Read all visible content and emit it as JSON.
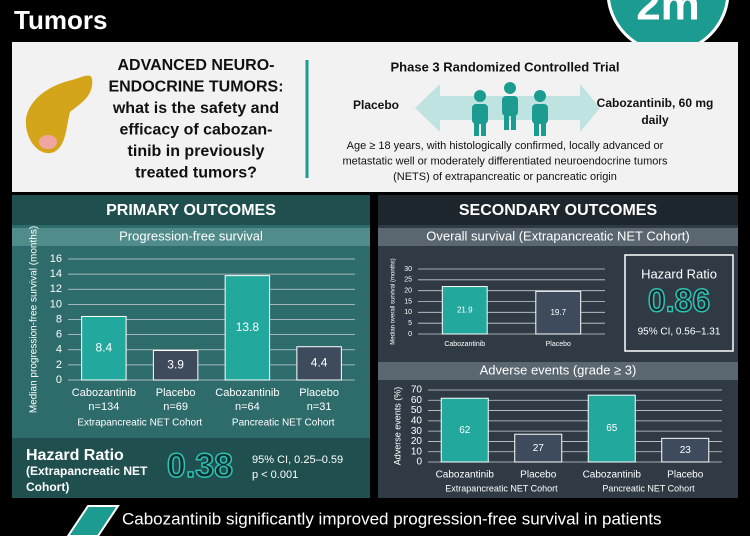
{
  "title": "Tumors",
  "logo": "2m",
  "intro": {
    "question": [
      "ADVANCED NEURO-",
      "ENDOCRINE TUMORS:",
      "what is the safety and",
      "efficacy of cabozan-",
      "tinib in previously",
      "treated tumors?"
    ]
  },
  "trial": {
    "heading": "Phase 3 Randomized Controlled Trial",
    "arm_left": "Placebo",
    "arm_right": [
      "Cabozantinib, 60 mg",
      "daily"
    ],
    "population": [
      "Age ≥ 18 years, with histologically confirmed, locally advanced or",
      "metastatic well or moderately differentiated neuroendocrine tumors",
      "(NETS) of extrapancreatic or pancreatic origin"
    ]
  },
  "primary": {
    "heading": "PRIMARY OUTCOMES",
    "hazard": {
      "label": [
        "Hazard Ratio",
        "(Extrapancreatic NET",
        "Cohort)"
      ],
      "value": 0.38,
      "ci": "95% CI, 0.25–0.59",
      "p": "p < 0.001"
    }
  },
  "secondary": {
    "heading": "SECONDARY OUTCOMES",
    "hazard": {
      "label": "Hazard Ratio",
      "value": 0.86,
      "ci": "95% CI, 0.56–1.31"
    }
  },
  "conclusion": "Cabozantinib significantly improved progression-free survival in patients",
  "chart_data": [
    {
      "type": "bar",
      "title": "Progression-free survival",
      "y_label": "Median progression-free survival (months)",
      "categories": [
        "Cabozantinib",
        "Placebo",
        "Cabozantinib",
        "Placebo"
      ],
      "category_notes": [
        "n=134",
        "n=69",
        "n=64",
        "n=31"
      ],
      "groups": [
        "Extrapancreatic NET Cohort",
        "Pancreatic NET Cohort"
      ],
      "values": [
        8.4,
        3.9,
        13.8,
        4.4
      ],
      "colors": [
        "#22a89d",
        "#3e4b5d",
        "#22a89d",
        "#3e4b5d"
      ],
      "ylim": [
        0,
        16
      ],
      "yticks": [
        0,
        2,
        4,
        6,
        8,
        10,
        12,
        14,
        16
      ],
      "grid": true
    },
    {
      "type": "bar",
      "title": "Overall survival (Extrapancreatic NET Cohort)",
      "y_label": "Median overall survival (months)",
      "categories": [
        "Cabozantinib",
        "Placebo"
      ],
      "values": [
        21.9,
        19.7
      ],
      "colors": [
        "#22a89d",
        "#3e4b5d"
      ],
      "ylim": [
        0,
        30
      ],
      "yticks": [
        0,
        5,
        10,
        15,
        20,
        25,
        30
      ],
      "grid": true
    },
    {
      "type": "bar",
      "title": "Adverse events (grade ≥ 3)",
      "y_label": "Adverse events (%)",
      "categories": [
        "Cabozantinib",
        "Placebo",
        "Cabozantinib",
        "Placebo"
      ],
      "groups": [
        "Extrapancreatic NET Cohort",
        "Pancreatic NET Cohort"
      ],
      "values": [
        62,
        27,
        65,
        23
      ],
      "colors": [
        "#22a89d",
        "#3e4b5d",
        "#22a89d",
        "#3e4b5d"
      ],
      "ylim": [
        0,
        70
      ],
      "yticks": [
        0,
        10,
        20,
        30,
        40,
        50,
        60,
        70
      ],
      "grid": true
    }
  ]
}
